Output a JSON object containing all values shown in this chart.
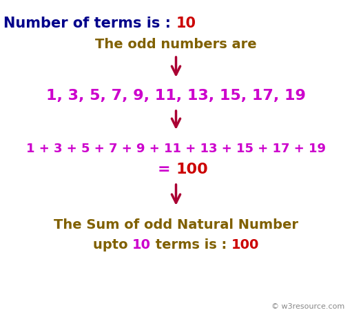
{
  "title_part1": "Number of terms is : ",
  "title_part2": "10",
  "subtitle": "The odd numbers are",
  "odd_numbers": "1, 3, 5, 7, 9, 11, 13, 15, 17, 19",
  "sum_line": "1 + 3 + 5 + 7 + 9 + 11 + 13 + 15 + 17 + 19",
  "equals_part1": "= ",
  "equals_part2": "100",
  "footer_line1": "The Sum of odd Natural Number",
  "footer_pre": "upto ",
  "footer_n": "10",
  "footer_post": " terms is : ",
  "footer_sum": "100",
  "watermark": "© w3resource.com",
  "color_navy": "#00008B",
  "color_red": "#CC0000",
  "color_olive": "#806000",
  "color_magenta": "#CC00CC",
  "color_gray": "#888888",
  "color_bg": "#FFFFFF",
  "arrow_color": "#AA0033"
}
